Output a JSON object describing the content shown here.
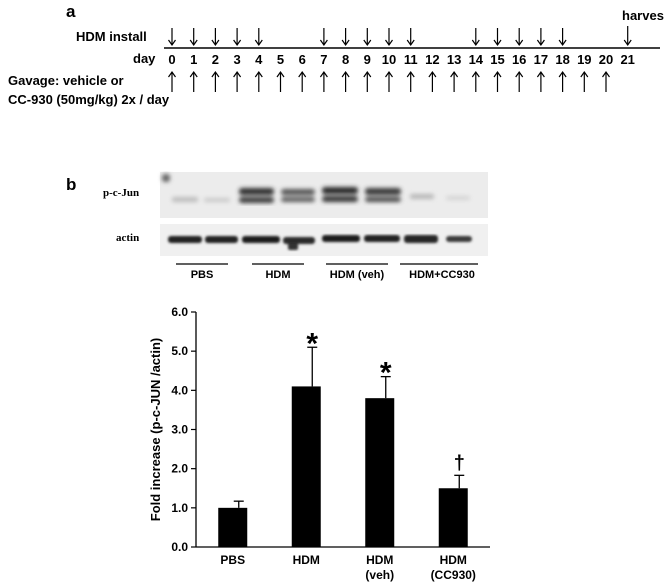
{
  "panel_a": {
    "letter": "a",
    "hdm_label": "HDM install",
    "day_label": "day",
    "harvest_label": "harvest",
    "gavage_line1": "Gavage: vehicle or",
    "gavage_line2": "CC-930 (50mg/kg) 2x / day",
    "days": [
      "0",
      "1",
      "2",
      "3",
      "4",
      "5",
      "6",
      "7",
      "8",
      "9",
      "10",
      "11",
      "12",
      "13",
      "14",
      "15",
      "16",
      "17",
      "18",
      "19",
      "20",
      "21"
    ],
    "hdm_days": [
      0,
      1,
      2,
      3,
      4,
      7,
      8,
      9,
      10,
      11,
      14,
      15,
      16,
      17,
      18
    ],
    "gavage_days": [
      0,
      1,
      2,
      3,
      4,
      5,
      6,
      7,
      8,
      9,
      10,
      11,
      12,
      13,
      14,
      15,
      16,
      17,
      18,
      19,
      20
    ],
    "harvest_day": 21
  },
  "panel_b": {
    "letter": "b",
    "blot_rows": [
      "p-c-Jun",
      "actin"
    ],
    "lane_groups": [
      "PBS",
      "HDM",
      "HDM (veh)",
      "HDM+CC930"
    ]
  },
  "chart_data": {
    "type": "bar",
    "categories": [
      "PBS",
      "HDM",
      "HDM\n(veh)",
      "HDM\n(CC930)"
    ],
    "values": [
      1.0,
      4.1,
      3.8,
      1.5
    ],
    "errors": [
      0.17,
      1.0,
      0.55,
      0.33
    ],
    "annotations": [
      "",
      "*",
      "*",
      "†"
    ],
    "ylabel": "Fold increase (p-c-JUN /actin)",
    "ylim": [
      0.0,
      6.0
    ],
    "yticks": [
      "0.0",
      "1.0",
      "2.0",
      "3.0",
      "4.0",
      "5.0",
      "6.0"
    ],
    "grid": false,
    "bar_color": "#000000"
  }
}
